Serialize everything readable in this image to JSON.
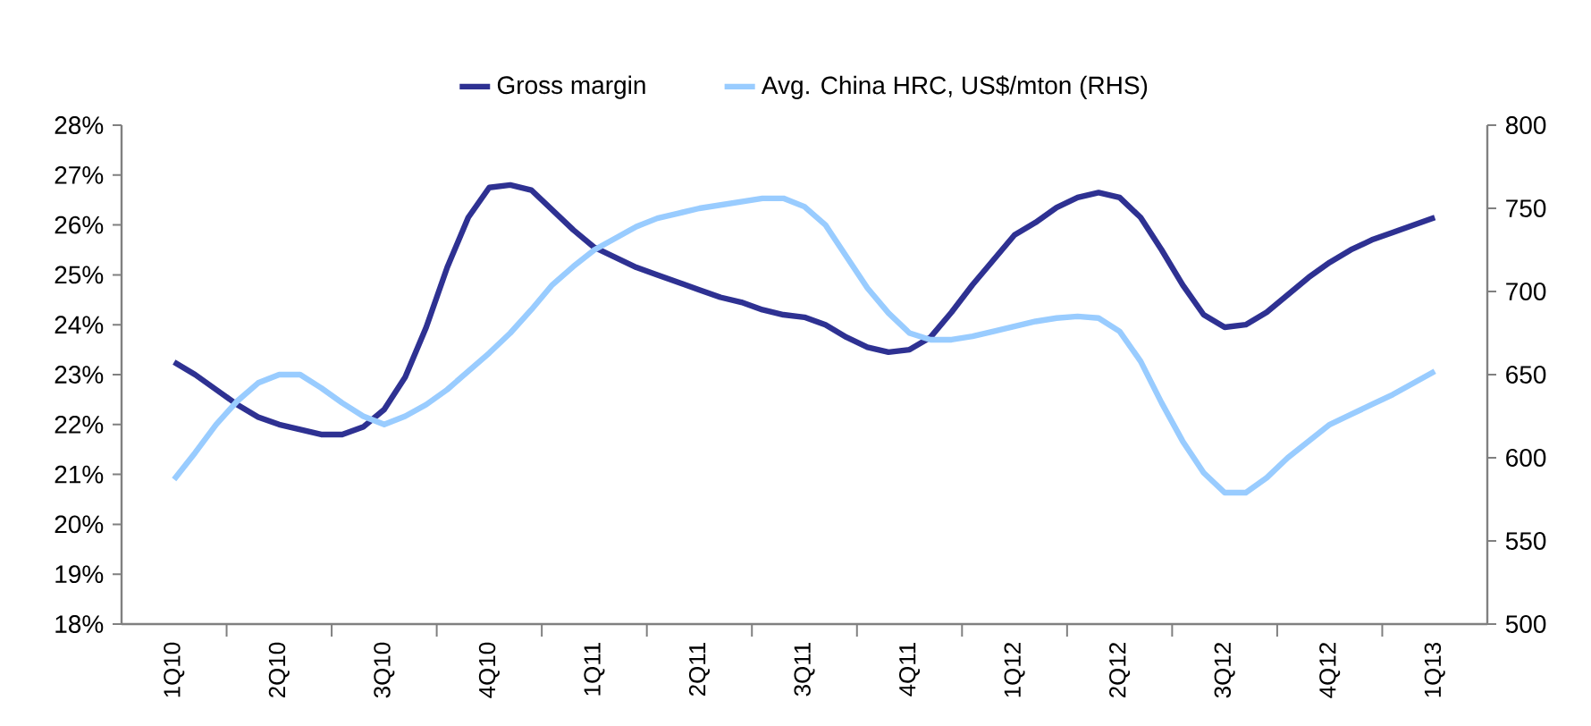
{
  "chart_data": {
    "type": "line",
    "legend": "top",
    "marker": "none",
    "line_style": "solid",
    "categories": [
      null,
      null,
      "1Q10",
      null,
      null,
      null,
      null,
      "2Q10",
      null,
      null,
      null,
      null,
      "3Q10",
      null,
      null,
      null,
      null,
      "4Q10",
      null,
      null,
      null,
      null,
      "1Q11",
      null,
      null,
      null,
      null,
      "2Q11",
      null,
      null,
      null,
      null,
      "3Q11",
      null,
      null,
      null,
      null,
      "4Q11",
      null,
      null,
      null,
      null,
      "1Q12",
      null,
      null,
      null,
      null,
      "2Q12",
      null,
      null,
      null,
      null,
      "3Q12",
      null,
      null,
      null,
      null,
      "4Q12",
      null,
      null,
      null,
      null,
      "1Q13",
      null,
      null
    ],
    "ylim": [
      18,
      28
    ],
    "yticks": [
      {
        "value": 18,
        "label": "18%"
      },
      {
        "value": 19,
        "label": "19%"
      },
      {
        "value": 20,
        "label": "20%"
      },
      {
        "value": 21,
        "label": "21%"
      },
      {
        "value": 22,
        "label": "22%"
      },
      {
        "value": 23,
        "label": "23%"
      },
      {
        "value": 24,
        "label": "24%"
      },
      {
        "value": 25,
        "label": "25%"
      },
      {
        "value": 26,
        "label": "26%"
      },
      {
        "value": 27,
        "label": "27%"
      },
      {
        "value": 28,
        "label": "28%"
      }
    ],
    "y2lim": [
      500,
      800
    ],
    "y2ticks": [
      500,
      550,
      600,
      650,
      700,
      750,
      800
    ],
    "series": [
      {
        "name": "Gross margin",
        "color": "#2e3192",
        "values": [
          null,
          null,
          23.25,
          23.0,
          22.7,
          22.4,
          22.15,
          22.0,
          21.9,
          21.8,
          21.8,
          21.95,
          22.3,
          22.95,
          23.95,
          25.15,
          26.15,
          26.75,
          26.8,
          26.7,
          26.3,
          25.9,
          25.55,
          25.35,
          25.15,
          25.0,
          24.85,
          24.7,
          24.55,
          24.45,
          24.3,
          24.2,
          24.15,
          24.0,
          23.75,
          23.55,
          23.45,
          23.5,
          23.75,
          24.25,
          24.8,
          25.3,
          25.8,
          26.05,
          26.35,
          26.55,
          26.65,
          26.55,
          26.15,
          25.5,
          24.8,
          24.2,
          23.95,
          24.0,
          24.25,
          24.6,
          24.95,
          25.25,
          25.5,
          25.7,
          25.85,
          26.0,
          26.15,
          null,
          null
        ]
      },
      {
        "name": "Avg. China HRC, US$/mton (RHS)",
        "color": "#99ccff",
        "axis": "y2",
        "values": [
          null,
          null,
          587,
          603,
          620,
          634,
          645,
          650,
          650,
          642,
          633,
          625,
          620,
          625,
          632,
          641,
          652,
          663,
          675,
          689,
          704,
          715,
          725,
          732,
          739,
          744,
          747,
          750,
          752,
          754,
          756,
          756,
          751,
          740,
          721,
          702,
          687,
          675,
          671,
          671,
          673,
          676,
          679,
          682,
          684,
          685,
          684,
          676,
          658,
          633,
          610,
          591,
          579,
          579,
          588,
          600,
          610,
          620,
          626,
          632,
          638,
          645,
          652,
          null,
          null
        ]
      }
    ]
  }
}
